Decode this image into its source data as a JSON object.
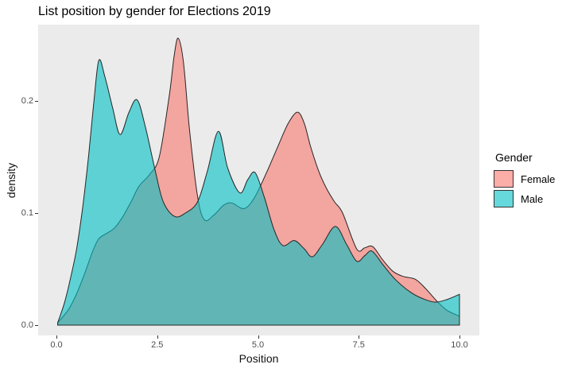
{
  "title": "List position by gender for Elections 2019",
  "axes": {
    "x": {
      "label": "Position",
      "ticks": [
        {
          "value": 0,
          "label": "0.0"
        },
        {
          "value": 2.5,
          "label": "2.5"
        },
        {
          "value": 5,
          "label": "5.0"
        },
        {
          "value": 7.5,
          "label": "7.5"
        },
        {
          "value": 10,
          "label": "10.0"
        }
      ]
    },
    "y": {
      "label": "density",
      "ticks": [
        {
          "value": 0,
          "label": "0.0"
        },
        {
          "value": 0.1,
          "label": "0.1"
        },
        {
          "value": 0.2,
          "label": "0.2"
        }
      ]
    }
  },
  "legend": {
    "title": "Gender",
    "items": [
      {
        "label": "Female",
        "color": "#F8766D"
      },
      {
        "label": "Male",
        "color": "#00BFC4"
      }
    ]
  },
  "style": {
    "page_bg": "#FFFFFF",
    "panel_bg": "#EBEBEB",
    "fill_opacity": 0.6,
    "curve_stroke": "#262626",
    "tick_text_color": "#4D4D4D",
    "gridlines": false
  },
  "chart_data": {
    "type": "area",
    "subtype": "overlaid-density",
    "title": "List position by gender for Elections 2019",
    "xlabel": "Position",
    "ylabel": "density",
    "xlim": [
      -0.45,
      10.5
    ],
    "ylim": [
      -0.009,
      0.268
    ],
    "grid": false,
    "legend_position": "right",
    "draw_order": [
      "Female",
      "Male"
    ],
    "series": [
      {
        "name": "Female",
        "color": "#F8766D",
        "x": [
          0.03,
          0.3,
          0.5,
          0.7,
          0.9,
          1.05,
          1.25,
          1.45,
          1.65,
          1.85,
          2.05,
          2.3,
          2.55,
          2.8,
          2.92,
          3.02,
          3.15,
          3.3,
          3.5,
          3.67,
          3.9,
          4.15,
          4.35,
          4.65,
          4.9,
          5.2,
          5.5,
          5.75,
          5.98,
          6.15,
          6.3,
          6.5,
          6.7,
          6.9,
          7.1,
          7.45,
          7.65,
          7.85,
          8.1,
          8.35,
          8.6,
          8.9,
          9.15,
          9.45,
          9.7,
          10.0
        ],
        "density": [
          0.002,
          0.014,
          0.028,
          0.046,
          0.066,
          0.077,
          0.082,
          0.087,
          0.097,
          0.11,
          0.124,
          0.134,
          0.15,
          0.205,
          0.24,
          0.256,
          0.235,
          0.175,
          0.115,
          0.094,
          0.098,
          0.107,
          0.109,
          0.104,
          0.113,
          0.135,
          0.16,
          0.18,
          0.19,
          0.18,
          0.16,
          0.138,
          0.122,
          0.11,
          0.1,
          0.068,
          0.069,
          0.07,
          0.058,
          0.048,
          0.0435,
          0.041,
          0.033,
          0.021,
          0.013,
          0.008
        ]
      },
      {
        "name": "Male",
        "color": "#00BFC4",
        "x": [
          0.03,
          0.2,
          0.35,
          0.5,
          0.65,
          0.8,
          0.92,
          1.05,
          1.2,
          1.4,
          1.58,
          1.8,
          2.0,
          2.2,
          2.45,
          2.65,
          2.93,
          3.2,
          3.5,
          3.75,
          4.02,
          4.25,
          4.55,
          4.75,
          4.93,
          5.15,
          5.4,
          5.62,
          5.9,
          6.15,
          6.35,
          6.6,
          6.92,
          7.2,
          7.45,
          7.65,
          7.83,
          8.1,
          8.4,
          8.8,
          9.1,
          9.4,
          9.7,
          10.0
        ],
        "density": [
          0.002,
          0.02,
          0.042,
          0.068,
          0.105,
          0.152,
          0.196,
          0.236,
          0.222,
          0.193,
          0.17,
          0.19,
          0.201,
          0.178,
          0.138,
          0.11,
          0.097,
          0.1,
          0.11,
          0.138,
          0.173,
          0.14,
          0.118,
          0.13,
          0.136,
          0.115,
          0.085,
          0.071,
          0.0755,
          0.068,
          0.061,
          0.072,
          0.088,
          0.072,
          0.057,
          0.062,
          0.066,
          0.054,
          0.041,
          0.029,
          0.0235,
          0.0205,
          0.023,
          0.0275
        ]
      }
    ]
  }
}
